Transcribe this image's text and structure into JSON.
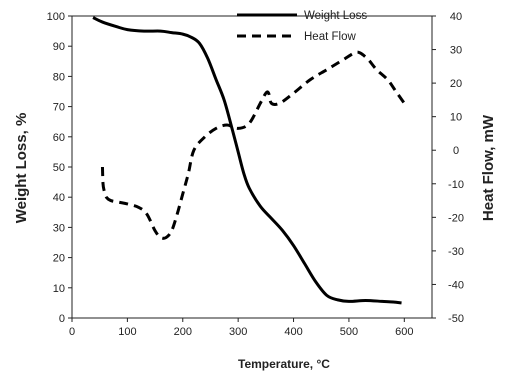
{
  "chart_data": {
    "type": "line",
    "xlabel": "Temperature, ",
    "xlabel_unit": "°C",
    "ylabel_left": "Weight Loss, %",
    "ylabel_right": "Heat Flow, mW",
    "xlim": [
      0,
      650
    ],
    "ylim_left": [
      0,
      100
    ],
    "ylim_right": [
      -50,
      40
    ],
    "x_ticks": [
      "0",
      "100",
      "200",
      "300",
      "400",
      "500",
      "600"
    ],
    "y_ticks_left": [
      "0",
      "10",
      "20",
      "30",
      "40",
      "50",
      "60",
      "70",
      "80",
      "90",
      "100"
    ],
    "y_ticks_right": [
      "-50",
      "-40",
      "-30",
      "-20",
      "-10",
      "0",
      "10",
      "20",
      "30",
      "40"
    ],
    "legend_position": "top-right",
    "series": [
      {
        "name": "Weight Loss",
        "axis": "left",
        "style": "solid",
        "color": "#000000",
        "x": [
          38,
          55,
          80,
          100,
          130,
          160,
          180,
          200,
          215,
          230,
          245,
          260,
          275,
          290,
          300,
          310,
          320,
          340,
          360,
          380,
          400,
          420,
          440,
          460,
          480,
          500,
          530,
          560,
          580,
          595
        ],
        "y": [
          99.5,
          98,
          96.5,
          95.5,
          95,
          95,
          94.5,
          94,
          93,
          91,
          86,
          79,
          72,
          62,
          55,
          48,
          43,
          37,
          33,
          29,
          24,
          18,
          12,
          7.5,
          6,
          5.5,
          5.8,
          5.5,
          5.3,
          5
        ]
      },
      {
        "name": "Heat Flow",
        "axis": "right",
        "style": "dashed",
        "color": "#000000",
        "x": [
          55,
          56,
          58,
          62,
          70,
          85,
          100,
          120,
          135,
          150,
          160,
          170,
          180,
          190,
          200,
          210,
          220,
          240,
          260,
          280,
          300,
          320,
          340,
          350,
          355,
          360,
          375,
          400,
          430,
          460,
          490,
          510,
          520,
          535,
          550,
          570,
          585,
          600
        ],
        "y": [
          -5,
          -10,
          -12,
          -14,
          -15,
          -15.5,
          -16,
          -17,
          -19,
          -24,
          -26,
          -26,
          -24,
          -19,
          -13,
          -7,
          0,
          4,
          6.5,
          7.5,
          6.5,
          8,
          14,
          17,
          17,
          14,
          14,
          17,
          21,
          24,
          27,
          29,
          29,
          27,
          24,
          21,
          17.5,
          14
        ]
      }
    ]
  }
}
